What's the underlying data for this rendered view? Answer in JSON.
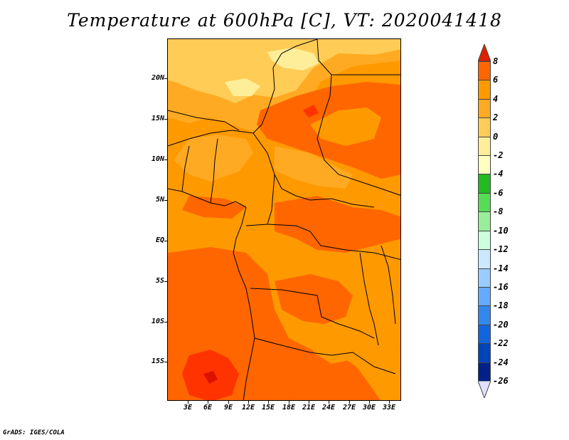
{
  "title": "Temperature at 600hPa [C], VT: 2020041418",
  "credit": "GrADS: IGES/COLA",
  "map": {
    "projection": "lat-lon",
    "lon_range": [
      0,
      34
    ],
    "lat_range": [
      -20,
      25
    ],
    "lat_labels": [
      "20N",
      "15N",
      "10N",
      "5N",
      "EQ",
      "5S",
      "10S",
      "15S"
    ],
    "lat_values": [
      20,
      15,
      10,
      5,
      0,
      -5,
      -10,
      -15
    ],
    "lon_labels": [
      "3E",
      "6E",
      "9E",
      "12E",
      "15E",
      "18E",
      "21E",
      "24E",
      "27E",
      "30E",
      "33E"
    ],
    "lon_values": [
      3,
      6,
      9,
      12,
      15,
      18,
      21,
      24,
      27,
      30,
      33
    ],
    "dominant_field": "2 to 6 C (orange) across central Africa",
    "warm_core": "6 to 8 C (red) near 16S-19S, 7E-10E"
  },
  "colorbar": {
    "labels": [
      "8",
      "6",
      "4",
      "2",
      "0",
      "-2",
      "-4",
      "-6",
      "-8",
      "-10",
      "-12",
      "-14",
      "-16",
      "-18",
      "-20",
      "-22",
      "-24",
      "-26"
    ],
    "colors": [
      "#ff3300",
      "#ff6600",
      "#ff9900",
      "#ffaa22",
      "#ffcc55",
      "#ffee99",
      "#ffffc0",
      "#22bb22",
      "#55dd55",
      "#99ee99",
      "#ccffdd",
      "#cce8ff",
      "#99ccff",
      "#66aaff",
      "#3388ee",
      "#1166dd",
      "#0044bb",
      "#002288",
      "#00105a"
    ],
    "top_arrow_color": "#dd2200",
    "bottom_arrow_color": "#e0e0ff"
  }
}
